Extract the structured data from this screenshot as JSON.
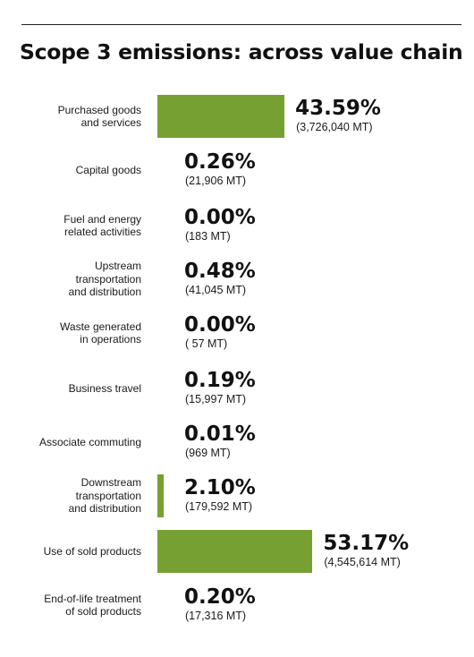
{
  "title": "Scope 3 emissions: across value chain",
  "bar_color": "#77a033",
  "chart_data": {
    "type": "bar",
    "orientation": "horizontal",
    "title": "Scope 3 emissions: across value chain",
    "categories": [
      "Purchased goods\nand services",
      "Capital goods",
      "Fuel and energy\nrelated activities",
      "Upstream\ntransportation\nand distribution",
      "Waste generated\nin operations",
      "Business travel",
      "Associate commuting",
      "Downstream\ntransportation\nand distribution",
      "Use of sold products",
      "End-of-life treatment\nof sold products"
    ],
    "values": [
      43.59,
      0.26,
      0.0,
      0.48,
      0.0,
      0.19,
      0.01,
      2.1,
      53.17,
      0.2
    ],
    "value_labels": [
      "43.59%",
      "0.26%",
      "0.00%",
      "0.48%",
      "0.00%",
      "0.19%",
      "0.01%",
      "2.10%",
      "53.17%",
      "0.20%"
    ],
    "sublabels": [
      "(3,726,040 MT)",
      "(21,906 MT)",
      "(183 MT)",
      "(41,045 MT)",
      "( 57 MT)",
      "(15,997 MT)",
      "(969 MT)",
      "(179,592 MT)",
      "(4,545,614 MT)",
      "(17,316 MT)"
    ],
    "unit": "%",
    "grid": false,
    "legend": "none"
  }
}
